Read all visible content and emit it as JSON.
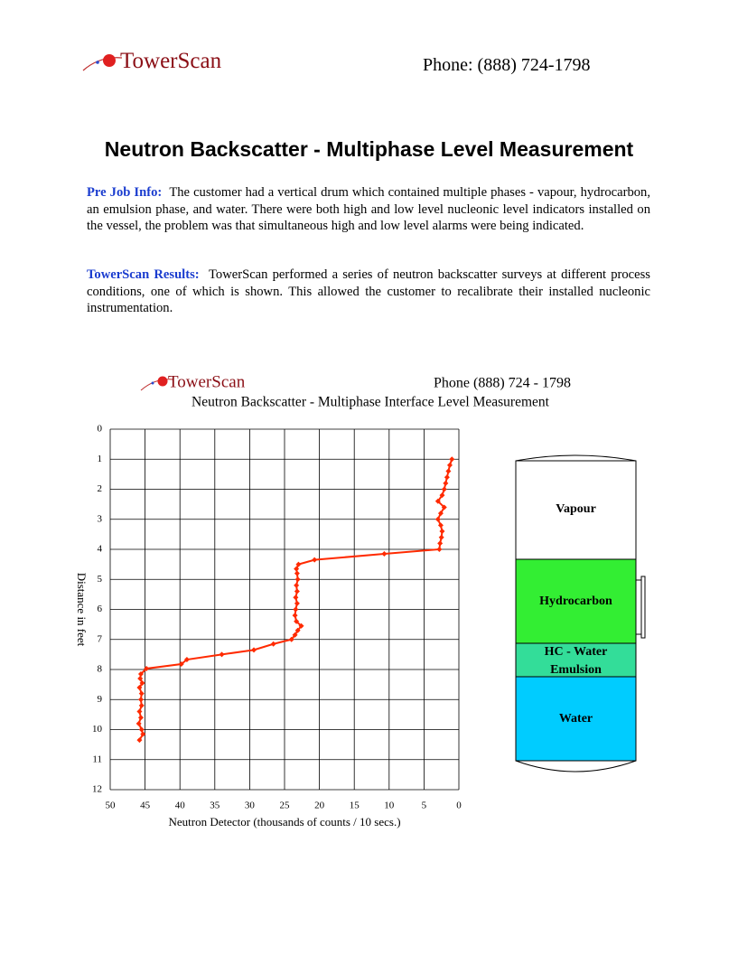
{
  "header": {
    "logo": "TowerScan",
    "phone": "Phone: (888) 724-1798"
  },
  "title": "Neutron Backscatter - Multiphase Level Measurement",
  "paragraphs": [
    {
      "label": "Pre Job Info:",
      "text": "The customer had a vertical drum which contained multiple phases - vapour, hydrocarbon, an emulsion phase, and water.  There were both high and low level nucleonic level indicators installed on the vessel, the problem was that simultaneous high and low level alarms were being indicated."
    },
    {
      "label": "TowerScan Results:",
      "text": "TowerScan performed a series of neutron backscatter surveys at different process conditions, one of which is shown.  This allowed the customer to recalibrate their installed nucleonic instrumentation."
    }
  ],
  "chart_data": {
    "type": "line",
    "logo": "TowerScan",
    "phone": "Phone (888) 724 - 1798",
    "title": "Neutron Backscatter - Multiphase Interface Level Measurement",
    "xlabel": "Neutron Detector (thousands of counts / 10 secs.)",
    "ylabel": "Distance in feet",
    "xlim": [
      50,
      0
    ],
    "ylim": [
      12,
      0
    ],
    "xticks": [
      50,
      45,
      40,
      35,
      30,
      25,
      20,
      15,
      10,
      5,
      0
    ],
    "yticks": [
      0,
      1,
      2,
      3,
      4,
      5,
      6,
      7,
      8,
      9,
      10,
      11,
      12
    ],
    "grid": true,
    "series": [
      {
        "color": "#ff2a00",
        "x": [
          1.0,
          1.3,
          1.5,
          1.7,
          1.9,
          2.1,
          2.4,
          3.0,
          2.1,
          2.6,
          3.0,
          2.6,
          2.4,
          2.5,
          2.7,
          2.8,
          10.7,
          20.7,
          23.0,
          23.3,
          23.2,
          23.1,
          23.3,
          23.2,
          23.4,
          23.2,
          23.4,
          23.5,
          23.3,
          22.6,
          23.1,
          23.5,
          24.0,
          26.6,
          29.4,
          34.0,
          39.0,
          39.8,
          44.8,
          45.6,
          45.7,
          45.4,
          45.8,
          45.5,
          45.6,
          45.5,
          45.8,
          45.6,
          45.9,
          45.5,
          45.3,
          45.8
        ],
        "values": [
          1.0,
          1.2,
          1.4,
          1.6,
          1.8,
          2.0,
          2.2,
          2.4,
          2.6,
          2.8,
          3.0,
          3.2,
          3.4,
          3.6,
          3.8,
          4.0,
          4.15,
          4.35,
          4.5,
          4.65,
          4.8,
          5.0,
          5.2,
          5.4,
          5.6,
          5.8,
          6.0,
          6.2,
          6.4,
          6.55,
          6.7,
          6.85,
          7.0,
          7.15,
          7.35,
          7.5,
          7.67,
          7.82,
          7.97,
          8.15,
          8.3,
          8.45,
          8.6,
          8.8,
          9.0,
          9.2,
          9.4,
          9.6,
          9.8,
          10.0,
          10.15,
          10.35
        ]
      }
    ]
  },
  "diagram": {
    "labels": [
      "Vapour",
      "Hydrocarbon",
      "HC - Water Emulsion",
      "Water"
    ]
  }
}
